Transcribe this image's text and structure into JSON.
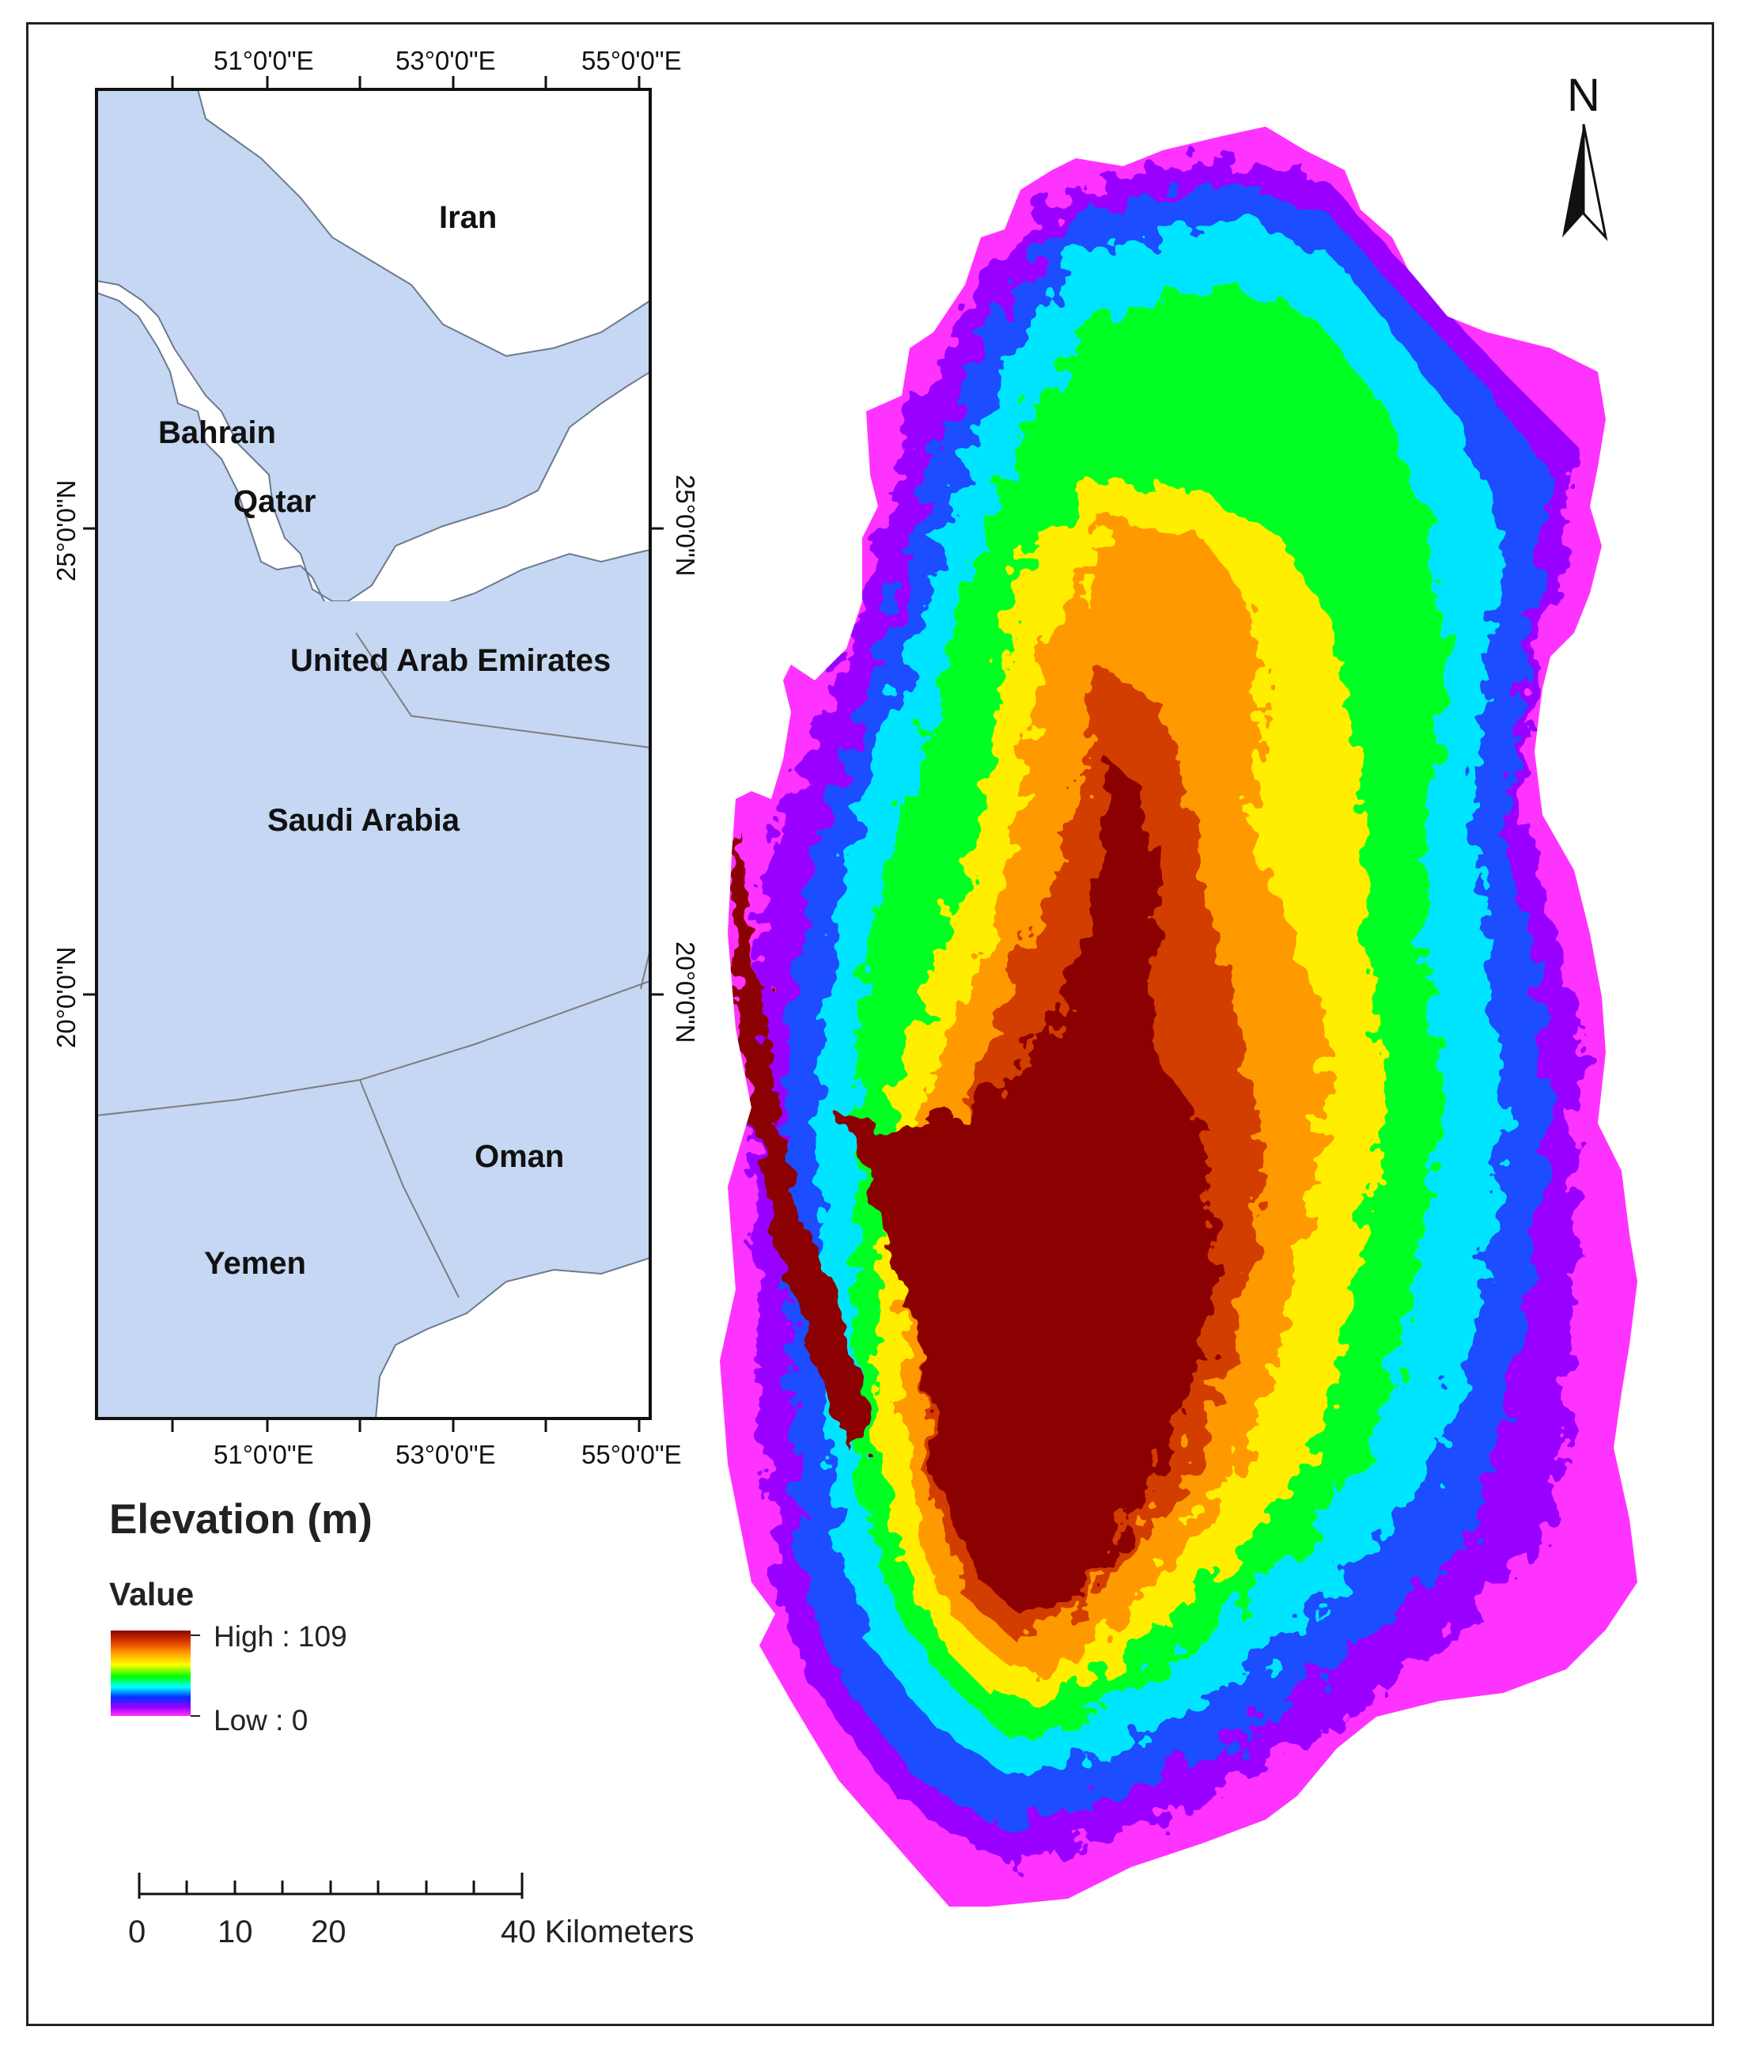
{
  "inset_map": {
    "countries": {
      "iran": "Iran",
      "bahrain": "Bahrain",
      "qatar": "Qatar",
      "uae": "United Arab Emirates",
      "saudi": "Saudi Arabia",
      "oman": "Oman",
      "yemen": "Yemen"
    },
    "lon_labels": [
      "51°0'0\"E",
      "53°0'0\"E",
      "55°0'0\"E"
    ],
    "lat_labels": [
      "25°0'0\"N",
      "20°0'0\"N"
    ],
    "colors": {
      "sea": "#c5d7f2",
      "land": "#ffffff",
      "border": "#7d7d7d"
    }
  },
  "north_arrow": {
    "label": "N"
  },
  "legend": {
    "title": "Elevation (m)",
    "subtitle": "Value",
    "high_label": "High : 109",
    "low_label": "Low : 0",
    "ramp_colors": [
      "#8b0000",
      "#e04000",
      "#ff9a00",
      "#ffff00",
      "#00ff00",
      "#00ffff",
      "#0030ff",
      "#9900ff",
      "#ff33ff"
    ]
  },
  "scale_bar": {
    "labels": [
      "0",
      "10",
      "20",
      "40 Kilometers"
    ]
  },
  "elevation_map": {
    "region": "Qatar",
    "min_elevation_m": 0,
    "max_elevation_m": 109
  }
}
